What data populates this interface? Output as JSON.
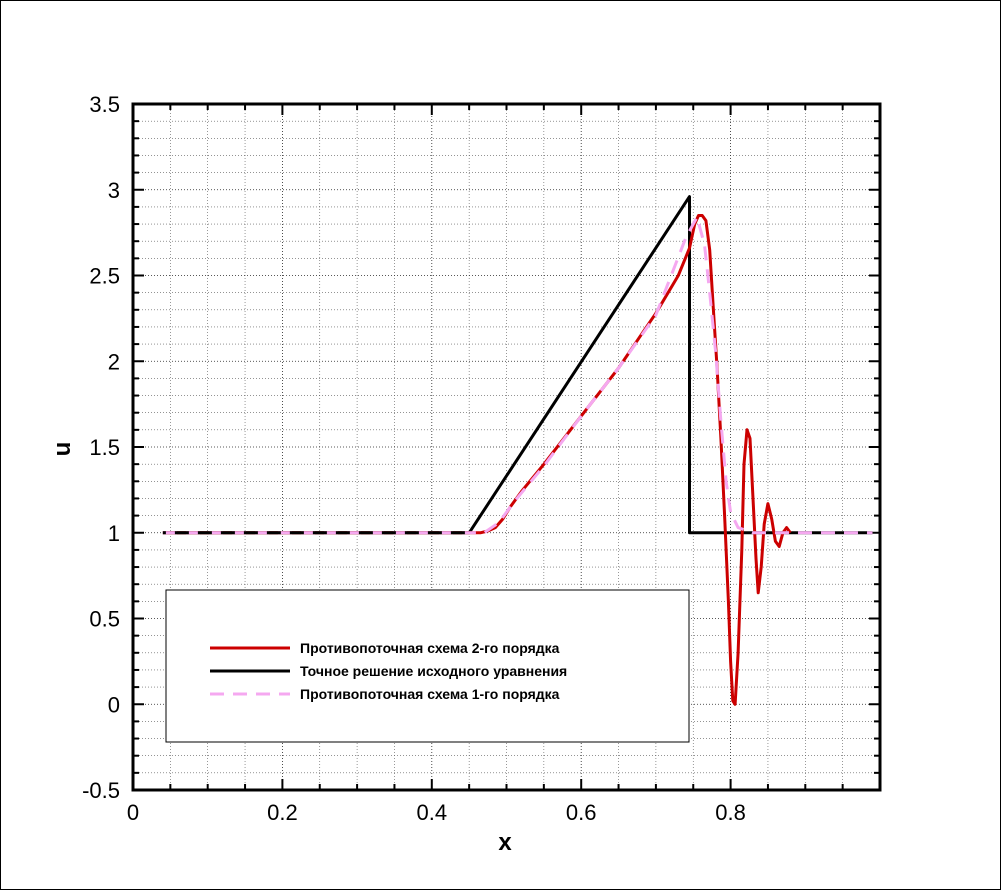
{
  "chart_data": {
    "type": "line",
    "xlabel": "x",
    "ylabel": "u",
    "xlim": [
      0,
      1
    ],
    "ylim": [
      -0.5,
      3.5
    ],
    "x_ticks": [
      "0",
      "0.2",
      "0.4",
      "0.6",
      "0.8"
    ],
    "y_ticks": [
      "-0.5",
      "0",
      "0.5",
      "1",
      "1.5",
      "2",
      "2.5",
      "3",
      "3.5"
    ],
    "grid": true,
    "legend_position": "bottom-left",
    "series": [
      {
        "name": "Противопоточная схема 2-го порядка",
        "color": "#cc0000",
        "style": "solid",
        "points": [
          [
            0.04,
            1
          ],
          [
            0.45,
            1
          ],
          [
            0.465,
            1.0
          ],
          [
            0.475,
            1.01
          ],
          [
            0.485,
            1.03
          ],
          [
            0.495,
            1.08
          ],
          [
            0.505,
            1.15
          ],
          [
            0.52,
            1.24
          ],
          [
            0.55,
            1.4
          ],
          [
            0.6,
            1.68
          ],
          [
            0.65,
            1.96
          ],
          [
            0.7,
            2.28
          ],
          [
            0.73,
            2.5
          ],
          [
            0.745,
            2.66
          ],
          [
            0.752,
            2.8
          ],
          [
            0.757,
            2.85
          ],
          [
            0.762,
            2.85
          ],
          [
            0.767,
            2.82
          ],
          [
            0.772,
            2.65
          ],
          [
            0.777,
            2.3
          ],
          [
            0.782,
            1.95
          ],
          [
            0.787,
            1.55
          ],
          [
            0.792,
            1.1
          ],
          [
            0.797,
            0.6
          ],
          [
            0.8,
            0.25
          ],
          [
            0.803,
            0.02
          ],
          [
            0.806,
            0.0
          ],
          [
            0.81,
            0.3
          ],
          [
            0.815,
            0.9
          ],
          [
            0.818,
            1.4
          ],
          [
            0.822,
            1.6
          ],
          [
            0.826,
            1.55
          ],
          [
            0.83,
            1.2
          ],
          [
            0.834,
            0.85
          ],
          [
            0.837,
            0.65
          ],
          [
            0.841,
            0.8
          ],
          [
            0.845,
            1.05
          ],
          [
            0.85,
            1.17
          ],
          [
            0.855,
            1.08
          ],
          [
            0.86,
            0.95
          ],
          [
            0.865,
            0.92
          ],
          [
            0.87,
            1.0
          ],
          [
            0.875,
            1.03
          ],
          [
            0.88,
            1.0
          ]
        ]
      },
      {
        "name": "Точное решение исходного уравнения",
        "color": "#000000",
        "style": "solid",
        "points": [
          [
            0.04,
            1
          ],
          [
            0.45,
            1
          ],
          [
            0.745,
            2.96
          ],
          [
            0.745,
            1.0
          ],
          [
            0.99,
            1.0
          ]
        ]
      },
      {
        "name": "Противопоточная схема 1-го порядка",
        "color": "#f5a8f0",
        "style": "dashed",
        "points": [
          [
            0.04,
            1
          ],
          [
            0.45,
            1
          ],
          [
            0.47,
            1.0
          ],
          [
            0.49,
            1.06
          ],
          [
            0.51,
            1.18
          ],
          [
            0.55,
            1.39
          ],
          [
            0.6,
            1.68
          ],
          [
            0.65,
            1.96
          ],
          [
            0.7,
            2.27
          ],
          [
            0.74,
            2.72
          ],
          [
            0.755,
            2.84
          ],
          [
            0.765,
            2.68
          ],
          [
            0.772,
            2.4
          ],
          [
            0.78,
            2.05
          ],
          [
            0.787,
            1.65
          ],
          [
            0.794,
            1.3
          ],
          [
            0.8,
            1.12
          ],
          [
            0.81,
            1.03
          ],
          [
            0.83,
            1.0
          ],
          [
            0.99,
            1.0
          ]
        ]
      }
    ]
  }
}
